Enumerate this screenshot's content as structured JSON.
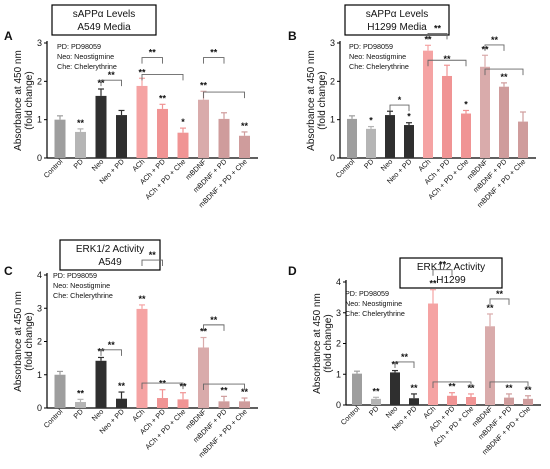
{
  "colors": {
    "control": "#9e9e9e",
    "pd": "#b5b5b5",
    "neo": "#2f2f2f",
    "ach": "#f5a3a3",
    "ach_dark": "#f09494",
    "mbdnf": "#d9abab",
    "mbdnf_dark": "#cf9c9c",
    "bracket": "#666666"
  },
  "chart_data": [
    {
      "type": "bar",
      "panel": "A",
      "title_line1": "sAPPα Levels",
      "title_line2": "A549 Media",
      "legend": [
        "PD: PD98059",
        "Neo: Neostigmine",
        "Che: Chelerythrine"
      ],
      "ylabel_line1": "Absorbance at 450 nm",
      "ylabel_line2": "(fold change)",
      "ylim": [
        0,
        3
      ],
      "yticks": [
        "0",
        "1",
        "2",
        "3"
      ],
      "categories": [
        "Control",
        "PD",
        "Neo",
        "Neo + PD",
        "ACh",
        "ACh + PD",
        "ACh + PD + Che",
        "mBDNF",
        "mBDNF + PD",
        "mBDNF + PD + Che"
      ],
      "values": [
        1.0,
        0.68,
        1.62,
        1.12,
        1.88,
        1.28,
        0.66,
        1.52,
        1.02,
        0.58
      ],
      "errors": [
        0.1,
        0.08,
        0.18,
        0.12,
        0.2,
        0.12,
        0.12,
        0.22,
        0.16,
        0.1
      ],
      "stars": [
        "",
        "**",
        "**",
        "",
        "**",
        "**",
        "*",
        "**",
        "",
        "**"
      ],
      "brackets": [
        {
          "from": 2,
          "to": 3,
          "y": 2.03,
          "label": "**"
        },
        {
          "from": 4,
          "to": 5,
          "y": 2.62,
          "label": "**"
        },
        {
          "from": 4,
          "to": 6,
          "y": 2.18,
          "label": ""
        },
        {
          "from": 7,
          "to": 8,
          "y": 2.62,
          "label": "**"
        },
        {
          "from": 7,
          "to": 9,
          "y": 1.72,
          "label": ""
        }
      ]
    },
    {
      "type": "bar",
      "panel": "B",
      "title_line1": "sAPPα Levels",
      "title_line2": "H1299 Media",
      "legend": [
        "PD: PD98059",
        "Neo: Neostigmine",
        "Che: Chelerythrine"
      ],
      "ylabel_line1": "Absorbance at 450 nm",
      "ylabel_line2": "(fold change)",
      "ylim": [
        0,
        3
      ],
      "yticks": [
        "0",
        "1",
        "2",
        "3"
      ],
      "categories": [
        "Control",
        "PD",
        "Neo",
        "Neo + PD",
        "ACh",
        "ACh + PD",
        "ACh + PD + Che",
        "mBDNF",
        "mBDNF + PD",
        "mBDNF + PD + Che"
      ],
      "values": [
        1.02,
        0.76,
        1.12,
        0.86,
        2.8,
        2.14,
        1.16,
        2.38,
        1.86,
        0.95
      ],
      "errors": [
        0.08,
        0.06,
        0.1,
        0.06,
        0.14,
        0.28,
        0.08,
        0.3,
        0.1,
        0.25
      ],
      "stars": [
        "",
        "*",
        "",
        "*",
        "**",
        "**",
        "*",
        "**",
        "**",
        ""
      ],
      "brackets": [
        {
          "from": 2,
          "to": 3,
          "y": 1.38,
          "label": "*"
        },
        {
          "from": 4,
          "to": 5,
          "y": 3.25,
          "label": "**"
        },
        {
          "from": 4,
          "to": 6,
          "y": 2.55,
          "label": ""
        },
        {
          "from": 7,
          "to": 8,
          "y": 2.95,
          "label": "**"
        },
        {
          "from": 7,
          "to": 9,
          "y": 2.32,
          "label": ""
        }
      ]
    },
    {
      "type": "bar",
      "panel": "C",
      "title_line1": "ERK1/2 Activity",
      "title_line2": "A549",
      "legend": [
        "PD: PD98059",
        "Neo: Neostigmine",
        "Che: Chelerythrine"
      ],
      "ylabel_line1": "Absorbance at 450 nm",
      "ylabel_line2": "(fold change)",
      "ylim": [
        0,
        4
      ],
      "yticks": [
        "0",
        "1",
        "2",
        "3",
        "4"
      ],
      "categories": [
        "Control",
        "PD",
        "Neo",
        "Neo + PD",
        "ACh",
        "ACh + PD",
        "ACh + PD + Che",
        "mBDNF",
        "mBDNF + PD",
        "mBDNF + PD + Che"
      ],
      "values": [
        1.0,
        0.18,
        1.42,
        0.28,
        2.98,
        0.3,
        0.26,
        1.82,
        0.2,
        0.2
      ],
      "errors": [
        0.1,
        0.08,
        0.1,
        0.2,
        0.12,
        0.25,
        0.2,
        0.3,
        0.15,
        0.1
      ],
      "stars": [
        "",
        "**",
        "**",
        "**",
        "**",
        "**",
        "**",
        "**",
        "**",
        "**"
      ],
      "brackets": [
        {
          "from": 2,
          "to": 3,
          "y": 1.75,
          "label": "**"
        },
        {
          "from": 4,
          "to": 5,
          "y": 4.45,
          "label": "**"
        },
        {
          "from": 4,
          "to": 6,
          "y": 0.75,
          "label": ""
        },
        {
          "from": 7,
          "to": 8,
          "y": 2.5,
          "label": "**"
        },
        {
          "from": 7,
          "to": 9,
          "y": 0.72,
          "label": ""
        }
      ]
    },
    {
      "type": "bar",
      "panel": "D",
      "title_line1": "ERK1/2 Activity",
      "title_line2": "H1299",
      "legend": [
        "PD: PD98059",
        "Neo: Neostigmine",
        "Che: Chelerythrine"
      ],
      "ylabel_line1": "Absorbance at 450 nm",
      "ylabel_line2": "(fold change)",
      "ylim": [
        0,
        4
      ],
      "yticks": [
        "0",
        "1",
        "2",
        "3",
        "4"
      ],
      "categories": [
        "Control",
        "PD",
        "Neo",
        "Neo + PD",
        "ACh",
        "ACh + PD",
        "ACh + PD + Che",
        "mBDNF",
        "mBDNF + PD",
        "mBDNF + PD + Che"
      ],
      "values": [
        1.02,
        0.2,
        1.06,
        0.22,
        3.3,
        0.3,
        0.26,
        2.56,
        0.24,
        0.2
      ],
      "errors": [
        0.08,
        0.05,
        0.06,
        0.14,
        0.45,
        0.1,
        0.1,
        0.4,
        0.12,
        0.1
      ],
      "stars": [
        "",
        "**",
        "**",
        "**",
        "**",
        "**",
        "**",
        "**",
        "**",
        "**"
      ],
      "brackets": [
        {
          "from": 2,
          "to": 3,
          "y": 1.4,
          "label": "**"
        },
        {
          "from": 4,
          "to": 5,
          "y": 4.4,
          "label": "**"
        },
        {
          "from": 4,
          "to": 6,
          "y": 0.75,
          "label": ""
        },
        {
          "from": 7,
          "to": 8,
          "y": 3.45,
          "label": "**"
        },
        {
          "from": 7,
          "to": 9,
          "y": 0.75,
          "label": ""
        }
      ]
    }
  ]
}
